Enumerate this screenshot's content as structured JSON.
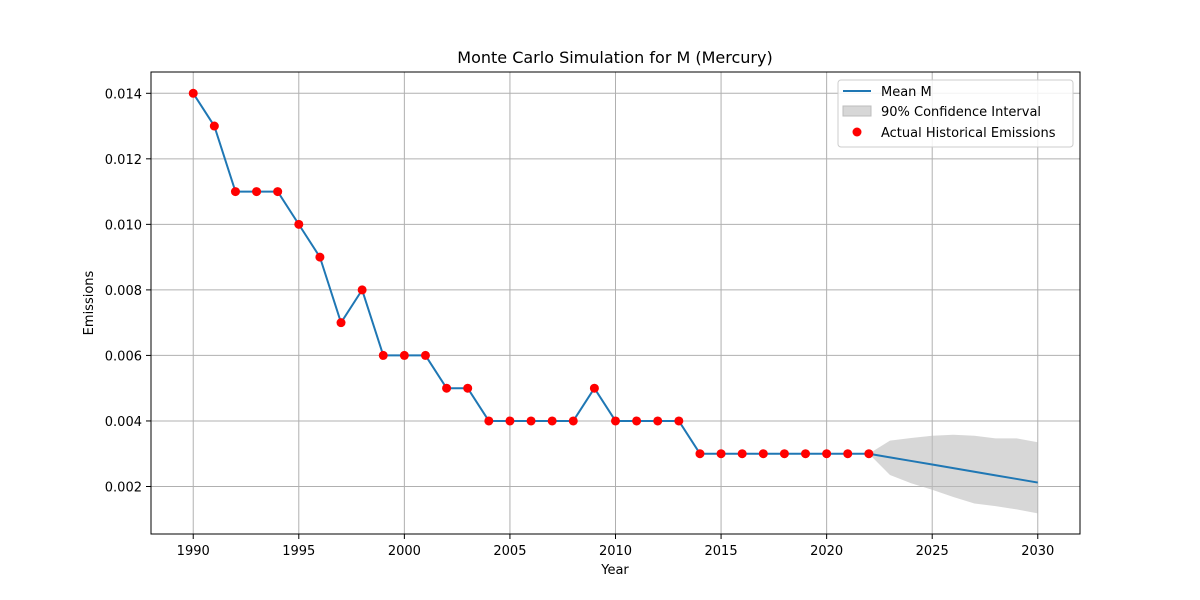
{
  "chart_data": {
    "type": "line",
    "title": "Monte Carlo Simulation for M (Mercury)",
    "xlabel": "Year",
    "ylabel": "Emissions",
    "xlim": [
      1988,
      2032
    ],
    "ylim": [
      0.00055,
      0.01465
    ],
    "xticks": [
      1990,
      1995,
      2000,
      2005,
      2010,
      2015,
      2020,
      2025,
      2030
    ],
    "yticks": [
      0.002,
      0.004,
      0.006,
      0.008,
      0.01,
      0.012,
      0.014
    ],
    "ytick_labels": [
      "0.002",
      "0.004",
      "0.006",
      "0.008",
      "0.010",
      "0.012",
      "0.014"
    ],
    "grid": true,
    "legend_position": "top-right",
    "series": [
      {
        "name": "Mean M",
        "kind": "line",
        "color": "#1f77b4",
        "x": [
          1990,
          1991,
          1992,
          1993,
          1994,
          1995,
          1996,
          1997,
          1998,
          1999,
          2000,
          2001,
          2002,
          2003,
          2004,
          2005,
          2006,
          2007,
          2008,
          2009,
          2010,
          2011,
          2012,
          2013,
          2014,
          2015,
          2016,
          2017,
          2018,
          2019,
          2020,
          2021,
          2022,
          2023,
          2024,
          2025,
          2026,
          2027,
          2028,
          2029,
          2030
        ],
        "y": [
          0.014,
          0.013,
          0.011,
          0.011,
          0.011,
          0.01,
          0.009,
          0.007,
          0.008,
          0.006,
          0.006,
          0.006,
          0.005,
          0.005,
          0.004,
          0.004,
          0.004,
          0.004,
          0.004,
          0.005,
          0.004,
          0.004,
          0.004,
          0.004,
          0.003,
          0.003,
          0.003,
          0.003,
          0.003,
          0.003,
          0.003,
          0.003,
          0.003,
          0.00289,
          0.00278,
          0.00267,
          0.00256,
          0.00245,
          0.00234,
          0.00223,
          0.00212
        ]
      },
      {
        "name": "90% Confidence Interval",
        "kind": "band",
        "color": "#bdbdbd",
        "x": [
          2022,
          2023,
          2024,
          2025,
          2026,
          2027,
          2028,
          2029,
          2030
        ],
        "lower": [
          0.003,
          0.00235,
          0.0021,
          0.0019,
          0.00168,
          0.00148,
          0.0014,
          0.0013,
          0.00118
        ],
        "upper": [
          0.003,
          0.0034,
          0.00348,
          0.00355,
          0.00358,
          0.00355,
          0.00347,
          0.00347,
          0.00335
        ]
      },
      {
        "name": "Actual Historical Emissions",
        "kind": "scatter",
        "color": "#ff0000",
        "x": [
          1990,
          1991,
          1992,
          1993,
          1994,
          1995,
          1996,
          1997,
          1998,
          1999,
          2000,
          2001,
          2002,
          2003,
          2004,
          2005,
          2006,
          2007,
          2008,
          2009,
          2010,
          2011,
          2012,
          2013,
          2014,
          2015,
          2016,
          2017,
          2018,
          2019,
          2020,
          2021,
          2022
        ],
        "y": [
          0.014,
          0.013,
          0.011,
          0.011,
          0.011,
          0.01,
          0.009,
          0.007,
          0.008,
          0.006,
          0.006,
          0.006,
          0.005,
          0.005,
          0.004,
          0.004,
          0.004,
          0.004,
          0.004,
          0.005,
          0.004,
          0.004,
          0.004,
          0.004,
          0.003,
          0.003,
          0.003,
          0.003,
          0.003,
          0.003,
          0.003,
          0.003,
          0.003
        ]
      }
    ]
  }
}
